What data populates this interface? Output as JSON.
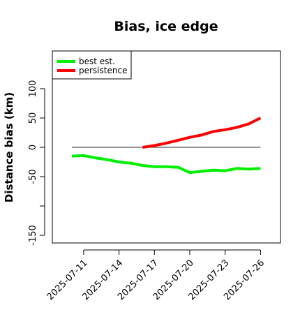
{
  "chart_data": {
    "type": "line",
    "title": "Bias, ice edge",
    "xlabel": "",
    "ylabel": "Distance bias (km)",
    "ylim": [
      -160,
      160
    ],
    "grid": false,
    "legend_placement": "top-left",
    "y_ticks": [
      -150,
      -50,
      0,
      50,
      100
    ],
    "x_ticks": [
      {
        "date": "2025-07-11",
        "label": "2025-07-11"
      },
      {
        "date": "2025-07-14",
        "label": "2025-07-14"
      },
      {
        "date": "2025-07-17",
        "label": "2025-07-17"
      },
      {
        "date": "2025-07-20",
        "label": "2025-07-20"
      },
      {
        "date": "2025-07-23",
        "label": "2025-07-23"
      },
      {
        "date": "2025-07-26",
        "label": "2025-07-26"
      }
    ],
    "x_range": [
      "2025-07-10",
      "2025-07-27"
    ],
    "reference_line": {
      "y": 0,
      "from": "2025-07-10",
      "to": "2025-07-26",
      "color": "#555555"
    },
    "series": [
      {
        "name": "best est.",
        "color": "#00ee00",
        "x": [
          "2025-07-10",
          "2025-07-11",
          "2025-07-12",
          "2025-07-13",
          "2025-07-14",
          "2025-07-15",
          "2025-07-16",
          "2025-07-17",
          "2025-07-18",
          "2025-07-19",
          "2025-07-20",
          "2025-07-21",
          "2025-07-22",
          "2025-07-23",
          "2025-07-24",
          "2025-07-25",
          "2025-07-26"
        ],
        "y": [
          -15,
          -14,
          -18,
          -21,
          -25,
          -27,
          -31,
          -33,
          -33,
          -34,
          -43,
          -41,
          -39,
          -40,
          -36,
          -37,
          -36
        ]
      },
      {
        "name": "persistence",
        "color": "#ff0000",
        "x": [
          "2025-07-16",
          "2025-07-17",
          "2025-07-18",
          "2025-07-19",
          "2025-07-20",
          "2025-07-21",
          "2025-07-22",
          "2025-07-23",
          "2025-07-24",
          "2025-07-25",
          "2025-07-26"
        ],
        "y": [
          0,
          3,
          7,
          12,
          17,
          21,
          27,
          30,
          34,
          40,
          50
        ]
      }
    ]
  }
}
